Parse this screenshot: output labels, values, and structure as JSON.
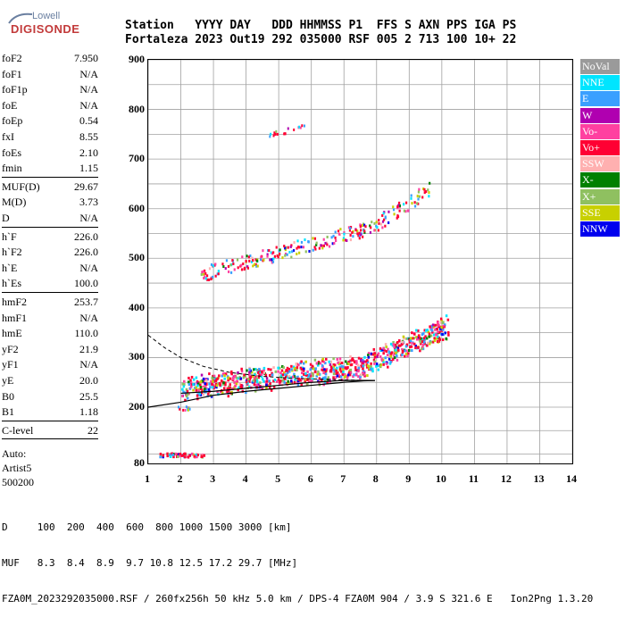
{
  "logo": {
    "line1": "Lowell",
    "line2": "DIGISONDE"
  },
  "header": {
    "labels": "Station   YYYY DAY   DDD HHMMSS P1  FFS S AXN PPS IGA PS",
    "values": "Fortaleza 2023 Out19 292 035000 RSF 005 2 713 100 10+ 22"
  },
  "params": {
    "group1": [
      {
        "label": "foF2",
        "value": "7.950"
      },
      {
        "label": "foF1",
        "value": "N/A"
      },
      {
        "label": "foF1p",
        "value": "N/A"
      },
      {
        "label": "foE",
        "value": "N/A"
      },
      {
        "label": "foEp",
        "value": "0.54"
      },
      {
        "label": "fxI",
        "value": "8.55"
      },
      {
        "label": "foEs",
        "value": "2.10"
      },
      {
        "label": "fmin",
        "value": "1.15"
      }
    ],
    "group2": [
      {
        "label": "MUF(D)",
        "value": "29.67"
      },
      {
        "label": "M(D)",
        "value": "3.73"
      },
      {
        "label": "D",
        "value": "N/A"
      }
    ],
    "group3": [
      {
        "label": "h`F",
        "value": "226.0"
      },
      {
        "label": "h`F2",
        "value": "226.0"
      },
      {
        "label": "h`E",
        "value": "N/A"
      },
      {
        "label": "h`Es",
        "value": "100.0"
      }
    ],
    "group4": [
      {
        "label": "hmF2",
        "value": "253.7"
      },
      {
        "label": "hmF1",
        "value": "N/A"
      },
      {
        "label": "hmE",
        "value": "110.0"
      },
      {
        "label": "yF2",
        "value": "21.9"
      },
      {
        "label": "yF1",
        "value": "N/A"
      },
      {
        "label": "yE",
        "value": "20.0"
      },
      {
        "label": "B0",
        "value": "25.5"
      },
      {
        "label": "B1",
        "value": "1.18"
      }
    ],
    "group5": [
      {
        "label": "C-level",
        "value": "22"
      }
    ],
    "auto": {
      "line1": "Auto:",
      "line2": "Artist5",
      "line3": "500200"
    }
  },
  "axes": {
    "x_ticks": [
      "1",
      "2",
      "3",
      "4",
      "5",
      "6",
      "7",
      "8",
      "9",
      "10",
      "11",
      "12",
      "13",
      "14"
    ],
    "y_ticks": [
      "900",
      "800",
      "700",
      "600",
      "500",
      "400",
      "300",
      "200",
      "80"
    ]
  },
  "legend": [
    {
      "label": "NoVal",
      "color": "#9a9a9a"
    },
    {
      "label": "NNE",
      "color": "#00e5ff"
    },
    {
      "label": "E",
      "color": "#3aa0ff"
    },
    {
      "label": "W",
      "color": "#b000b0"
    },
    {
      "label": "Vo-",
      "color": "#ff40a0"
    },
    {
      "label": "Vo+",
      "color": "#ff0033"
    },
    {
      "label": "SSW",
      "color": "#ffb0b0"
    },
    {
      "label": "X-",
      "color": "#008000"
    },
    {
      "label": "X+",
      "color": "#8fc060"
    },
    {
      "label": "SSE",
      "color": "#c8d000"
    },
    {
      "label": "NNW",
      "color": "#0000ee"
    }
  ],
  "footer": {
    "line1": "D     100  200  400  600  800 1000 1500 3000 [km]",
    "line2": "MUF   8.3  8.4  8.9  9.7 10.8 12.5 17.2 29.7 [MHz]",
    "line3": "FZA0M_2023292035000.RSF / 260fx256h 50 kHz 5.0 km / DPS-4 FZA0M 904 / 3.9 S 321.6 E   Ion2Png 1.3.20"
  }
}
